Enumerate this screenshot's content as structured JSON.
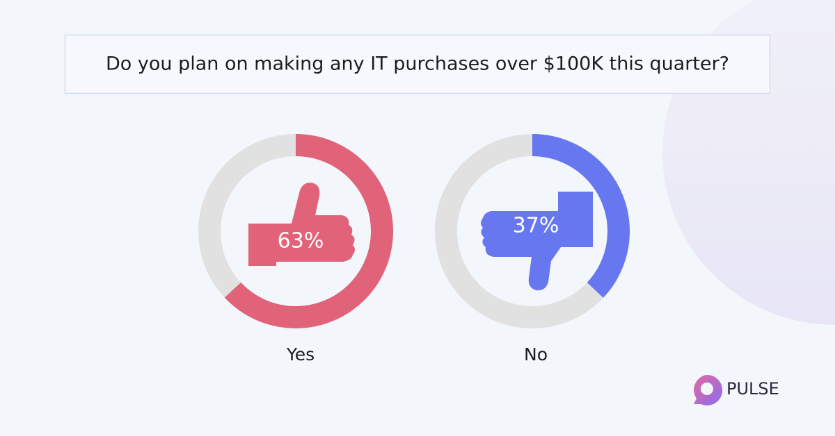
{
  "header": {
    "title": "Do you plan on making any IT purchases over $100K this quarter?"
  },
  "chart_data": [
    {
      "type": "donut",
      "categories": [
        "Yes"
      ],
      "values": [
        63
      ],
      "value_labels": [
        "63%"
      ],
      "color": "#e0637a",
      "track_color": "#e1e1e1"
    },
    {
      "type": "donut",
      "categories": [
        "No"
      ],
      "values": [
        37
      ],
      "value_labels": [
        "37%"
      ],
      "color": "#6677f0",
      "track_color": "#e1e1e1"
    }
  ],
  "brand": "PULSE"
}
